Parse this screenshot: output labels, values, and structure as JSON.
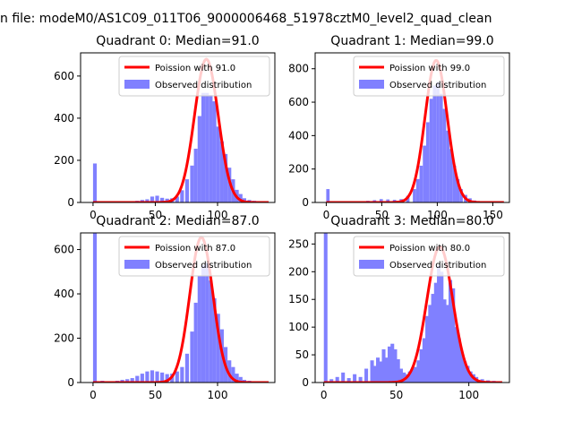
{
  "figure": {
    "suptitle": "n file: modeM0/AS1C09_011T06_9000006468_51978cztM0_level2_quad_clean",
    "colors": {
      "bar": "#8080ff",
      "line": "#ff0000",
      "frame": "#000000"
    }
  },
  "chart_data": [
    {
      "type": "bar",
      "title": "Quadrant 0: Median=91.0",
      "median": 91.0,
      "xlim": [
        -10,
        146
      ],
      "ylim": [
        0,
        710
      ],
      "xticks": [
        0,
        50,
        100
      ],
      "yticks": [
        0,
        200,
        400,
        600
      ],
      "bin_width": 3,
      "hist": [
        [
          0,
          185
        ],
        [
          6,
          4
        ],
        [
          10,
          3
        ],
        [
          14,
          3
        ],
        [
          18,
          4
        ],
        [
          22,
          5
        ],
        [
          26,
          4
        ],
        [
          30,
          6
        ],
        [
          34,
          8
        ],
        [
          38,
          12
        ],
        [
          42,
          15
        ],
        [
          46,
          28
        ],
        [
          50,
          32
        ],
        [
          54,
          22
        ],
        [
          58,
          18
        ],
        [
          62,
          20
        ],
        [
          66,
          28
        ],
        [
          70,
          58
        ],
        [
          74,
          110
        ],
        [
          78,
          175
        ],
        [
          81,
          255
        ],
        [
          84,
          410
        ],
        [
          87,
          520
        ],
        [
          90,
          520
        ],
        [
          93,
          510
        ],
        [
          96,
          480
        ],
        [
          99,
          360
        ],
        [
          102,
          290
        ],
        [
          105,
          230
        ],
        [
          108,
          165
        ],
        [
          111,
          110
        ],
        [
          114,
          60
        ],
        [
          117,
          40
        ],
        [
          120,
          20
        ],
        [
          124,
          12
        ],
        [
          128,
          8
        ],
        [
          132,
          4
        ],
        [
          136,
          2
        ]
      ],
      "series": [
        {
          "name": "Observed distribution",
          "kind": "bar"
        },
        {
          "name": "Poission with 91.0",
          "kind": "line",
          "mean": 91.0,
          "peak": 680
        }
      ],
      "legend": "upper right"
    },
    {
      "type": "bar",
      "title": "Quadrant 1: Median=99.0",
      "median": 99.0,
      "xlim": [
        -10,
        165
      ],
      "ylim": [
        0,
        895
      ],
      "xticks": [
        0,
        50,
        100,
        150
      ],
      "yticks": [
        0,
        200,
        400,
        600,
        800
      ],
      "bin_width": 3,
      "hist": [
        [
          0,
          80
        ],
        [
          6,
          5
        ],
        [
          12,
          4
        ],
        [
          18,
          5
        ],
        [
          24,
          6
        ],
        [
          30,
          8
        ],
        [
          36,
          10
        ],
        [
          42,
          14
        ],
        [
          48,
          20
        ],
        [
          54,
          18
        ],
        [
          60,
          16
        ],
        [
          66,
          20
        ],
        [
          72,
          40
        ],
        [
          78,
          80
        ],
        [
          81,
          140
        ],
        [
          84,
          220
        ],
        [
          87,
          340
        ],
        [
          90,
          480
        ],
        [
          93,
          620
        ],
        [
          96,
          700
        ],
        [
          99,
          720
        ],
        [
          102,
          650
        ],
        [
          105,
          560
        ],
        [
          108,
          430
        ],
        [
          111,
          320
        ],
        [
          114,
          220
        ],
        [
          117,
          140
        ],
        [
          120,
          80
        ],
        [
          124,
          45
        ],
        [
          128,
          25
        ],
        [
          132,
          12
        ],
        [
          138,
          8
        ],
        [
          144,
          6
        ],
        [
          150,
          4
        ],
        [
          156,
          2
        ]
      ],
      "series": [
        {
          "name": "Observed distribution",
          "kind": "bar"
        },
        {
          "name": "Poission with 99.0",
          "kind": "line",
          "mean": 99.0,
          "peak": 850
        }
      ],
      "legend": "upper right"
    },
    {
      "type": "bar",
      "title": "Quadrant 2: Median=87.0",
      "median": 87.0,
      "xlim": [
        -10,
        146
      ],
      "ylim": [
        0,
        675
      ],
      "xticks": [
        0,
        50,
        100
      ],
      "yticks": [
        0,
        200,
        400,
        600
      ],
      "bin_width": 3,
      "hist": [
        [
          0,
          700
        ],
        [
          6,
          8
        ],
        [
          10,
          6
        ],
        [
          14,
          5
        ],
        [
          18,
          8
        ],
        [
          22,
          12
        ],
        [
          26,
          15
        ],
        [
          30,
          20
        ],
        [
          34,
          30
        ],
        [
          38,
          40
        ],
        [
          42,
          50
        ],
        [
          46,
          55
        ],
        [
          50,
          50
        ],
        [
          54,
          45
        ],
        [
          58,
          38
        ],
        [
          62,
          40
        ],
        [
          66,
          50
        ],
        [
          70,
          70
        ],
        [
          74,
          130
        ],
        [
          78,
          230
        ],
        [
          81,
          360
        ],
        [
          84,
          480
        ],
        [
          87,
          530
        ],
        [
          90,
          540
        ],
        [
          93,
          460
        ],
        [
          96,
          380
        ],
        [
          99,
          310
        ],
        [
          102,
          240
        ],
        [
          105,
          160
        ],
        [
          108,
          100
        ],
        [
          111,
          70
        ],
        [
          114,
          40
        ],
        [
          117,
          25
        ],
        [
          120,
          12
        ],
        [
          124,
          8
        ],
        [
          128,
          5
        ],
        [
          132,
          3
        ]
      ],
      "series": [
        {
          "name": "Observed distribution",
          "kind": "bar"
        },
        {
          "name": "Poission with 87.0",
          "kind": "line",
          "mean": 87.0,
          "peak": 655
        }
      ],
      "legend": "upper right"
    },
    {
      "type": "bar",
      "title": "Quadrant 3: Median=80.0",
      "median": 80.0,
      "xlim": [
        -6,
        128
      ],
      "ylim": [
        0,
        270
      ],
      "xticks": [
        0,
        50,
        100
      ],
      "yticks": [
        0,
        50,
        100,
        150,
        200,
        250
      ],
      "bin_width": 2.5,
      "hist": [
        [
          0,
          270
        ],
        [
          4,
          6
        ],
        [
          8,
          10
        ],
        [
          12,
          18
        ],
        [
          16,
          8
        ],
        [
          20,
          15
        ],
        [
          24,
          10
        ],
        [
          28,
          25
        ],
        [
          32,
          40
        ],
        [
          34,
          30
        ],
        [
          36,
          45
        ],
        [
          38,
          38
        ],
        [
          40,
          60
        ],
        [
          42,
          45
        ],
        [
          44,
          65
        ],
        [
          46,
          70
        ],
        [
          48,
          60
        ],
        [
          50,
          42
        ],
        [
          52,
          25
        ],
        [
          54,
          18
        ],
        [
          56,
          15
        ],
        [
          58,
          20
        ],
        [
          60,
          25
        ],
        [
          62,
          28
        ],
        [
          64,
          40
        ],
        [
          66,
          60
        ],
        [
          68,
          80
        ],
        [
          70,
          120
        ],
        [
          72,
          140
        ],
        [
          74,
          160
        ],
        [
          76,
          180
        ],
        [
          78,
          210
        ],
        [
          80,
          200
        ],
        [
          82,
          150
        ],
        [
          84,
          140
        ],
        [
          86,
          185
        ],
        [
          88,
          170
        ],
        [
          90,
          100
        ],
        [
          92,
          80
        ],
        [
          94,
          55
        ],
        [
          96,
          38
        ],
        [
          98,
          30
        ],
        [
          100,
          20
        ],
        [
          102,
          15
        ],
        [
          104,
          10
        ],
        [
          108,
          6
        ],
        [
          112,
          4
        ],
        [
          116,
          3
        ],
        [
          120,
          2
        ]
      ],
      "series": [
        {
          "name": "Observed distribution",
          "kind": "bar"
        },
        {
          "name": "Poission with 80.0",
          "kind": "line",
          "mean": 80.0,
          "peak": 245
        }
      ],
      "legend": "upper right"
    }
  ]
}
